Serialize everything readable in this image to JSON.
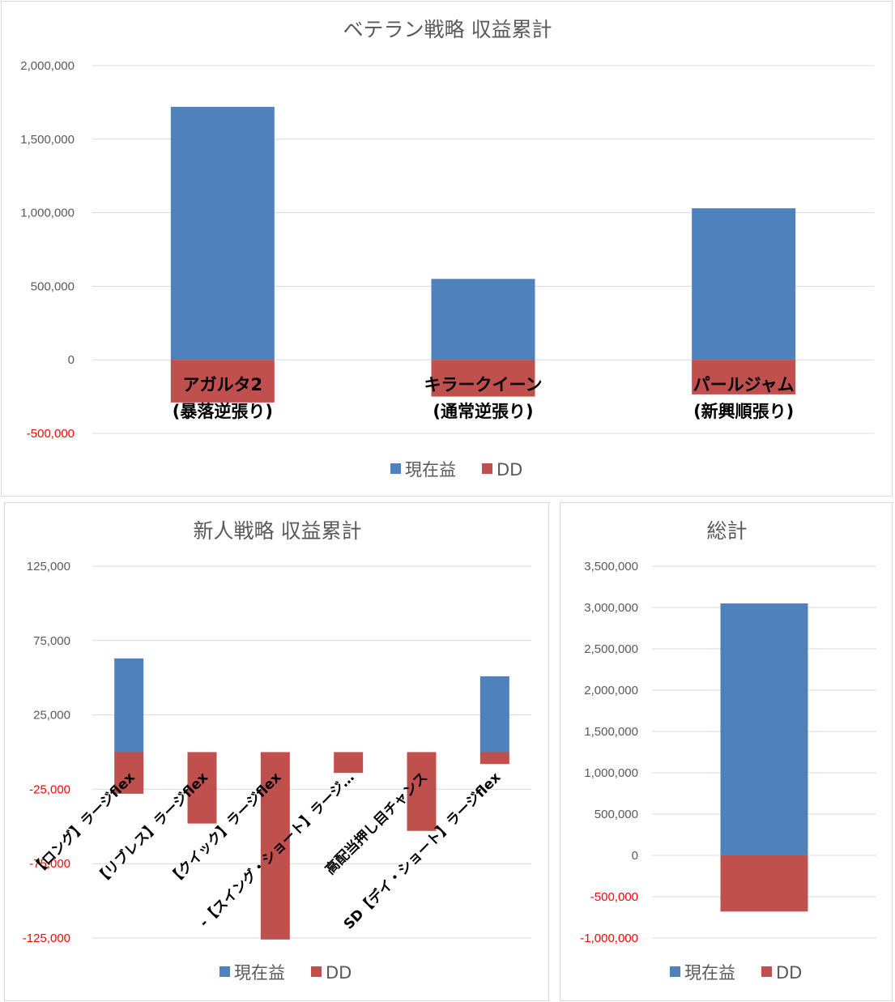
{
  "colors": {
    "current": "#4f81bd",
    "dd": "#c0504d",
    "grid": "#d9d9d9",
    "text": "#595959",
    "negative_tick": "#ff0000"
  },
  "chart_data": [
    {
      "type": "bar",
      "title": "ベテラン戦略 収益累計",
      "categories": [
        "アガルタ2\n(暴落逆張り)",
        "キラークイーン\n(通常逆張り)",
        "パールジャム\n(新興順張り)"
      ],
      "series": [
        {
          "name": "現在益",
          "values": [
            1720000,
            550000,
            1030000
          ]
        },
        {
          "name": "DD",
          "values": [
            -290000,
            -250000,
            -235000
          ]
        }
      ],
      "ylim": [
        -500000,
        2000000
      ],
      "ticks": [
        -500000,
        0,
        500000,
        1000000,
        1500000,
        2000000
      ],
      "tick_labels": [
        "-500,000",
        "0",
        "500,000",
        "1,000,000",
        "1,500,000",
        "2,000,000"
      ],
      "grid": true,
      "legend": "bottom"
    },
    {
      "type": "bar",
      "title": "新人戦略 収益累計",
      "categories": [
        "【ロング】ラージflex",
        "【リブレス】ラージflex",
        "【クイック】ラージflex",
        "-【スイング・ショート】ラージ…",
        "高配当押し目チャンス",
        "SD【デイ・ショート】ラージflex"
      ],
      "series": [
        {
          "name": "現在益",
          "values": [
            63000,
            0,
            0,
            0,
            0,
            51000
          ]
        },
        {
          "name": "DD",
          "values": [
            -28000,
            -48000,
            -126000,
            -14000,
            -53000,
            -8000
          ]
        }
      ],
      "ylim": [
        -125000,
        125000
      ],
      "ticks": [
        -125000,
        -75000,
        -25000,
        25000,
        75000,
        125000
      ],
      "tick_labels": [
        "-125,000",
        "-75,000",
        "-25,000",
        "25,000",
        "75,000",
        "125,000"
      ],
      "grid": true,
      "legend": "bottom"
    },
    {
      "type": "bar",
      "title": "総計",
      "categories": [
        ""
      ],
      "series": [
        {
          "name": "現在益",
          "values": [
            3050000
          ]
        },
        {
          "name": "DD",
          "values": [
            -680000
          ]
        }
      ],
      "ylim": [
        -1000000,
        3500000
      ],
      "ticks": [
        -1000000,
        -500000,
        0,
        500000,
        1000000,
        1500000,
        2000000,
        2500000,
        3000000,
        3500000
      ],
      "tick_labels": [
        "-1,000,000",
        "-500,000",
        "0",
        "500,000",
        "1,000,000",
        "1,500,000",
        "2,000,000",
        "2,500,000",
        "3,000,000",
        "3,500,000"
      ],
      "grid": true,
      "legend": "bottom"
    }
  ]
}
